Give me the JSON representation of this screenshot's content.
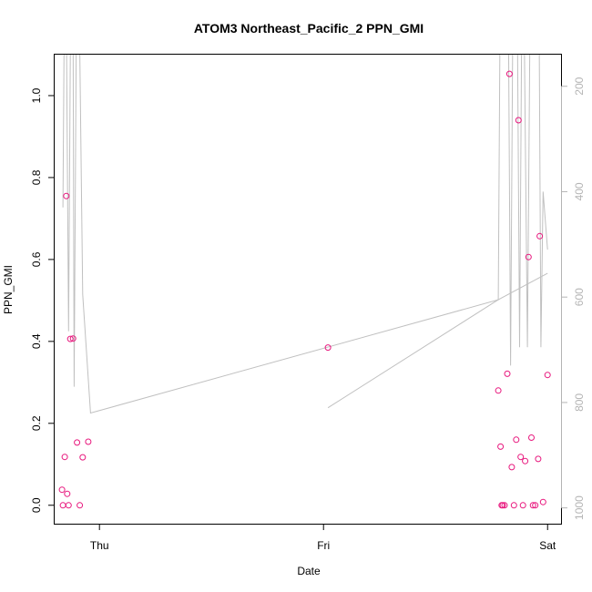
{
  "chart_data": {
    "type": "scatter",
    "title": "ATOM3 Northeast_Pacific_2 PPN_GMI",
    "xlabel": "Date",
    "ylabel": "PPN_GMI",
    "x_ticks": [
      {
        "value": 0.0,
        "label": "Thu"
      },
      {
        "value": 1.0,
        "label": "Fri"
      },
      {
        "value": 2.0,
        "label": "Sat"
      }
    ],
    "xlim": [
      -0.2,
      2.06
    ],
    "ylim": [
      -0.045,
      1.1
    ],
    "y_ticks": [
      {
        "value": 0.0,
        "label": "0.0"
      },
      {
        "value": 0.2,
        "label": "0.2"
      },
      {
        "value": 0.4,
        "label": "0.4"
      },
      {
        "value": 0.6,
        "label": "0.6"
      },
      {
        "value": 0.8,
        "label": "0.8"
      },
      {
        "value": 1.0,
        "label": "1.0"
      }
    ],
    "y2_reversed": true,
    "y2lim": [
      1030,
      140
    ],
    "y2_ticks": [
      {
        "value": 200,
        "label": "200"
      },
      {
        "value": 400,
        "label": "400"
      },
      {
        "value": 600,
        "label": "600"
      },
      {
        "value": 800,
        "label": "800"
      },
      {
        "value": 1000,
        "label": "1000"
      }
    ],
    "point_color": "#e8177d",
    "line_color": "#c0c0c0",
    "axis2_color": "#b4b4b4",
    "series": [
      {
        "marker": "open-circle",
        "points": [
          {
            "x": -0.167,
            "y": 0.038
          },
          {
            "x": -0.163,
            "y": 0.0
          },
          {
            "x": -0.155,
            "y": 0.118
          },
          {
            "x": -0.148,
            "y": 0.755
          },
          {
            "x": -0.144,
            "y": 0.028
          },
          {
            "x": -0.138,
            "y": 0.0
          },
          {
            "x": -0.13,
            "y": 0.406
          },
          {
            "x": -0.118,
            "y": 0.407
          },
          {
            "x": -0.1,
            "y": 0.153
          },
          {
            "x": -0.088,
            "y": 0.0
          },
          {
            "x": -0.075,
            "y": 0.117
          },
          {
            "x": -0.05,
            "y": 0.155
          },
          {
            "x": 1.02,
            "y": 0.385
          },
          {
            "x": 1.78,
            "y": 0.28
          },
          {
            "x": 1.79,
            "y": 0.143
          },
          {
            "x": 1.795,
            "y": 0.0
          },
          {
            "x": 1.8,
            "y": 0.0
          },
          {
            "x": 1.808,
            "y": 0.0
          },
          {
            "x": 1.82,
            "y": 0.321
          },
          {
            "x": 1.83,
            "y": 1.053
          },
          {
            "x": 1.84,
            "y": 0.093
          },
          {
            "x": 1.85,
            "y": 0.0
          },
          {
            "x": 1.86,
            "y": 0.16
          },
          {
            "x": 1.87,
            "y": 0.94
          },
          {
            "x": 1.88,
            "y": 0.118
          },
          {
            "x": 1.89,
            "y": 0.0
          },
          {
            "x": 1.9,
            "y": 0.108
          },
          {
            "x": 1.915,
            "y": 0.606
          },
          {
            "x": 1.928,
            "y": 0.165
          },
          {
            "x": 1.935,
            "y": 0.0
          },
          {
            "x": 1.945,
            "y": 0.0
          },
          {
            "x": 1.958,
            "y": 0.113
          },
          {
            "x": 1.965,
            "y": 0.657
          },
          {
            "x": 1.98,
            "y": 0.008
          },
          {
            "x": 2.0,
            "y": 0.318
          }
        ]
      },
      {
        "name_axis": "y2",
        "style": "line",
        "segments": [
          [
            {
              "x": -0.163,
              "y2": 430
            },
            {
              "x": -0.157,
              "y2": 60
            },
            {
              "x": -0.148,
              "y2": 60
            },
            {
              "x": -0.138,
              "y2": 665
            },
            {
              "x": -0.129,
              "y2": 60
            },
            {
              "x": -0.118,
              "y2": 60
            },
            {
              "x": -0.113,
              "y2": 770
            },
            {
              "x": -0.103,
              "y2": 60
            },
            {
              "x": -0.09,
              "y2": 60
            },
            {
              "x": -0.075,
              "y2": 595
            },
            {
              "x": -0.04,
              "y2": 820
            },
            {
              "x": 1.78,
              "y2": 605
            },
            {
              "x": 1.788,
              "y2": 60
            },
            {
              "x": 1.796,
              "y2": 60
            },
            {
              "x": 1.806,
              "y2": 60
            },
            {
              "x": 1.815,
              "y2": 60
            },
            {
              "x": 1.825,
              "y2": 60
            },
            {
              "x": 1.835,
              "y2": 730
            },
            {
              "x": 1.845,
              "y2": 60
            },
            {
              "x": 1.855,
              "y2": 60
            },
            {
              "x": 1.865,
              "y2": 60
            },
            {
              "x": 1.875,
              "y2": 695
            },
            {
              "x": 1.885,
              "y2": 60
            },
            {
              "x": 1.895,
              "y2": 60
            },
            {
              "x": 1.91,
              "y2": 695
            },
            {
              "x": 1.922,
              "y2": 60
            },
            {
              "x": 1.934,
              "y2": 60
            },
            {
              "x": 1.95,
              "y2": 60
            },
            {
              "x": 1.962,
              "y2": 60
            },
            {
              "x": 1.97,
              "y2": 695
            },
            {
              "x": 1.98,
              "y2": 400
            },
            {
              "x": 2.0,
              "y2": 510
            }
          ],
          [
            {
              "x": 2.0,
              "y2": 555
            },
            {
              "x": 1.78,
              "y2": 605
            },
            {
              "x": 1.02,
              "y2": 810
            }
          ]
        ]
      }
    ]
  }
}
